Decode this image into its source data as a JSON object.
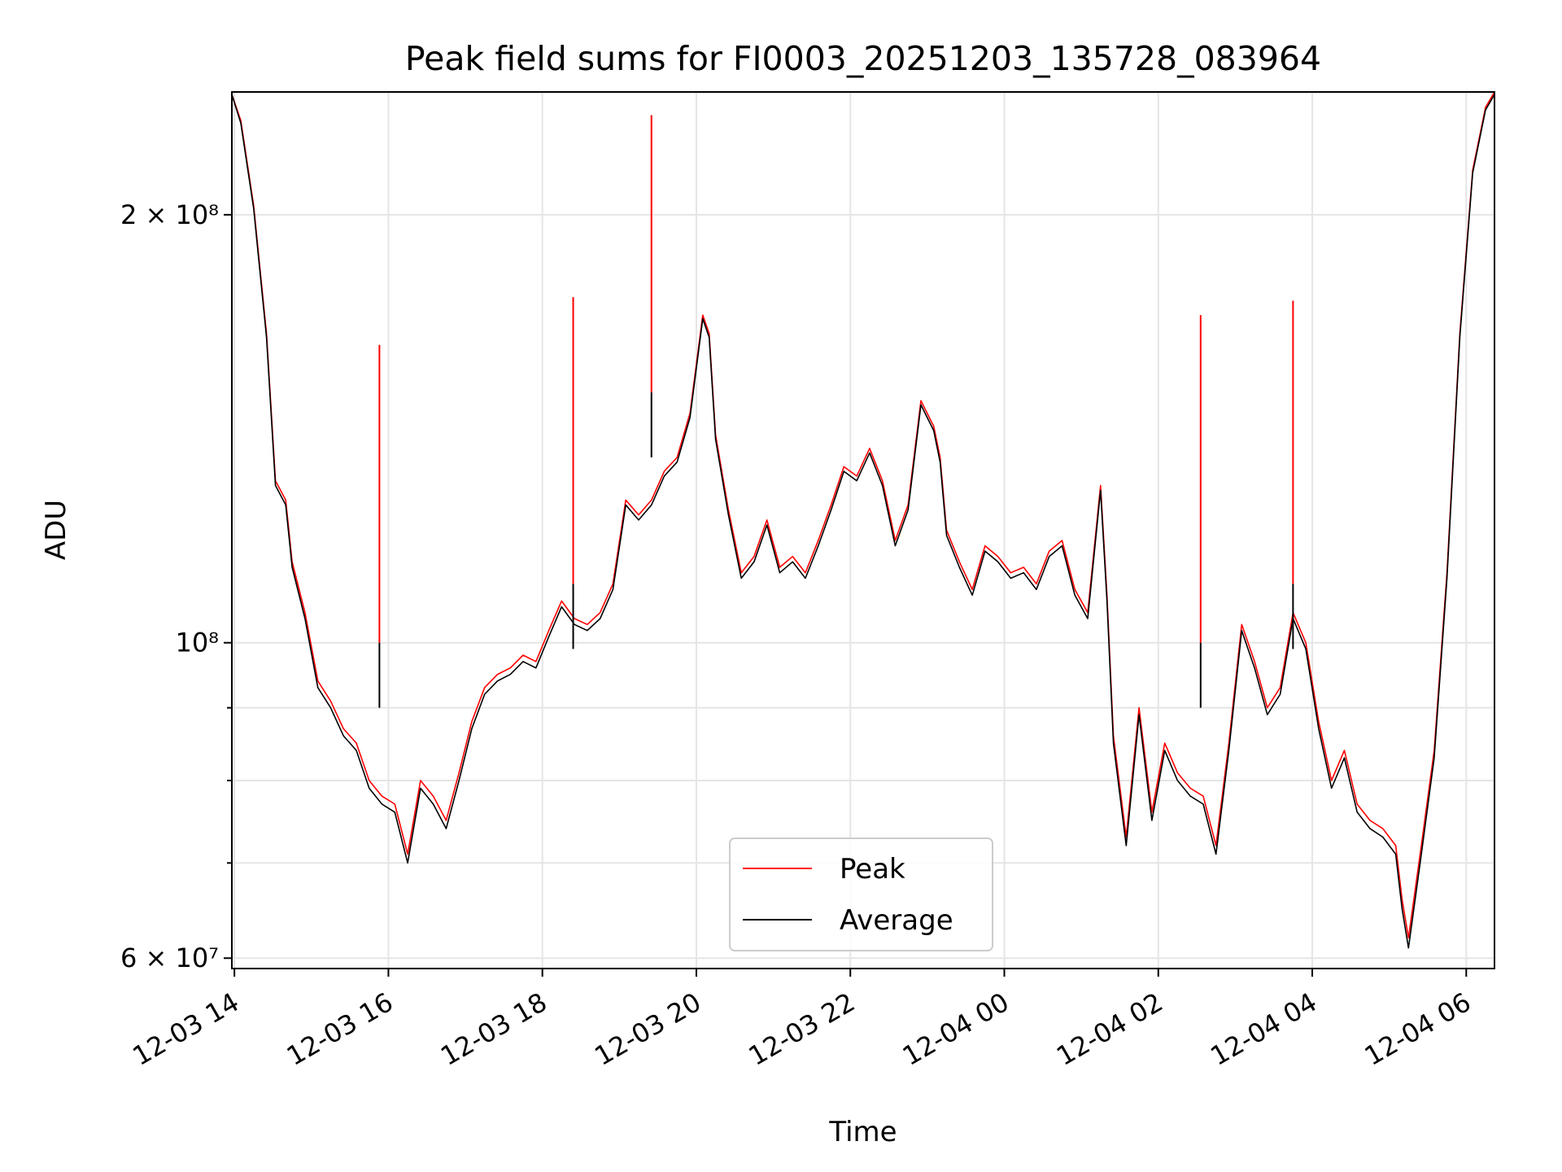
{
  "chart_data": {
    "type": "line",
    "title": "Peak field sums for FI0003_20251203_135728_083964",
    "xlabel": "Time",
    "ylabel": "ADU",
    "yscale": "log",
    "ylim": [
      59000000,
      244000000
    ],
    "xlim": [
      "12-03 13:58",
      "12-04 06:22"
    ],
    "grid": true,
    "legend_position": "lower-center",
    "x_ticks": [
      "12-03 14",
      "12-03 16",
      "12-03 18",
      "12-03 20",
      "12-03 22",
      "12-04 00",
      "12-04 02",
      "12-04 04",
      "12-04 06"
    ],
    "y_ticks": [
      {
        "label": "6 × 10⁷",
        "value": 60000000
      },
      {
        "label": "10⁸",
        "value": 100000000
      },
      {
        "label": "2 × 10⁸",
        "value": 200000000
      }
    ],
    "y_minor_ticks": [
      70000000,
      80000000,
      90000000
    ],
    "x": [
      "12-03 13:58",
      "12-03 14:05",
      "12-03 14:15",
      "12-03 14:25",
      "12-03 14:32",
      "12-03 14:40",
      "12-03 14:45",
      "12-03 14:55",
      "12-03 15:05",
      "12-03 15:15",
      "12-03 15:25",
      "12-03 15:35",
      "12-03 15:45",
      "12-03 15:55",
      "12-03 16:05",
      "12-03 16:15",
      "12-03 16:25",
      "12-03 16:35",
      "12-03 16:45",
      "12-03 16:55",
      "12-03 17:05",
      "12-03 17:15",
      "12-03 17:25",
      "12-03 17:35",
      "12-03 17:45",
      "12-03 17:55",
      "12-03 18:05",
      "12-03 18:15",
      "12-03 18:25",
      "12-03 18:35",
      "12-03 18:45",
      "12-03 18:55",
      "12-03 19:05",
      "12-03 19:15",
      "12-03 19:25",
      "12-03 19:35",
      "12-03 19:45",
      "12-03 19:55",
      "12-03 20:05",
      "12-03 20:10",
      "12-03 20:15",
      "12-03 20:25",
      "12-03 20:35",
      "12-03 20:45",
      "12-03 20:55",
      "12-03 21:05",
      "12-03 21:15",
      "12-03 21:25",
      "12-03 21:35",
      "12-03 21:45",
      "12-03 21:55",
      "12-03 22:05",
      "12-03 22:15",
      "12-03 22:25",
      "12-03 22:35",
      "12-03 22:45",
      "12-03 22:55",
      "12-03 23:05",
      "12-03 23:10",
      "12-03 23:15",
      "12-03 23:25",
      "12-03 23:35",
      "12-03 23:45",
      "12-03 23:55",
      "12-04 00:05",
      "12-04 00:15",
      "12-04 00:25",
      "12-04 00:35",
      "12-04 00:45",
      "12-04 00:55",
      "12-04 01:05",
      "12-04 01:15",
      "12-04 01:20",
      "12-04 01:25",
      "12-04 01:35",
      "12-04 01:45",
      "12-04 01:55",
      "12-04 02:05",
      "12-04 02:15",
      "12-04 02:25",
      "12-04 02:35",
      "12-04 02:45",
      "12-04 02:55",
      "12-04 03:05",
      "12-04 03:15",
      "12-04 03:25",
      "12-04 03:35",
      "12-04 03:45",
      "12-04 03:55",
      "12-04 04:05",
      "12-04 04:15",
      "12-04 04:25",
      "12-04 04:35",
      "12-04 04:45",
      "12-04 04:55",
      "12-04 05:05",
      "12-04 05:10",
      "12-04 05:15",
      "12-04 05:25",
      "12-04 05:35",
      "12-04 05:45",
      "12-04 05:55",
      "12-04 06:05",
      "12-04 06:15",
      "12-04 06:22"
    ],
    "series": [
      {
        "name": "Peak",
        "color": "#ff0000",
        "values": [
          243000000,
          233000000,
          203000000,
          165000000,
          130000000,
          126000000,
          114000000,
          105000000,
          94000000,
          91000000,
          87000000,
          85000000,
          80000000,
          78000000,
          77000000,
          71000000,
          80000000,
          78000000,
          75000000,
          81000000,
          88000000,
          93000000,
          95000000,
          96000000,
          98000000,
          97000000,
          102000000,
          107000000,
          104000000,
          103000000,
          105000000,
          110000000,
          126000000,
          123000000,
          126000000,
          132000000,
          135000000,
          145000000,
          170000000,
          165000000,
          140000000,
          124000000,
          112000000,
          115000000,
          122000000,
          113000000,
          115000000,
          112000000,
          118000000,
          125000000,
          133000000,
          131000000,
          137000000,
          130000000,
          118000000,
          125000000,
          148000000,
          142000000,
          135000000,
          120000000,
          114000000,
          109000000,
          117000000,
          115000000,
          112000000,
          113000000,
          110000000,
          116000000,
          118000000,
          109000000,
          105000000,
          129000000,
          108000000,
          86000000,
          73000000,
          90000000,
          76000000,
          85000000,
          81000000,
          79000000,
          78000000,
          72000000,
          85000000,
          103000000,
          97000000,
          90000000,
          93000000,
          105000000,
          100000000,
          88000000,
          80000000,
          84000000,
          77000000,
          75000000,
          74000000,
          72000000,
          66000000,
          62000000,
          72000000,
          84000000,
          112000000,
          165000000,
          215000000,
          238000000,
          244000000
        ]
      },
      {
        "name": "Average",
        "color": "#000000",
        "values": [
          243000000,
          232000000,
          202000000,
          164000000,
          129000000,
          125000000,
          113000000,
          104000000,
          93000000,
          90000000,
          86000000,
          84000000,
          79000000,
          77000000,
          76000000,
          70000000,
          79000000,
          77000000,
          74000000,
          80000000,
          87000000,
          92000000,
          94000000,
          95000000,
          97000000,
          96000000,
          101000000,
          106000000,
          103000000,
          102000000,
          104000000,
          109000000,
          125000000,
          122000000,
          125000000,
          131000000,
          134000000,
          144000000,
          169000000,
          164000000,
          139000000,
          123000000,
          111000000,
          114000000,
          121000000,
          112000000,
          114000000,
          111000000,
          117000000,
          124000000,
          132000000,
          130000000,
          136000000,
          129000000,
          117000000,
          124000000,
          147000000,
          141000000,
          134000000,
          119000000,
          113000000,
          108000000,
          116000000,
          114000000,
          111000000,
          112000000,
          109000000,
          115000000,
          117000000,
          108000000,
          104000000,
          128000000,
          107000000,
          85000000,
          72000000,
          89000000,
          75000000,
          84000000,
          80000000,
          78000000,
          77000000,
          71000000,
          84000000,
          102000000,
          96000000,
          89000000,
          92000000,
          104000000,
          99000000,
          87000000,
          79000000,
          83000000,
          76000000,
          74000000,
          73000000,
          71000000,
          65000000,
          61000000,
          71000000,
          83000000,
          111000000,
          164000000,
          214000000,
          237000000,
          243000000
        ]
      }
    ],
    "peak_spikes": [
      {
        "x": "12-03 15:53",
        "peak": 162000000,
        "average": 100000000
      },
      {
        "x": "12-03 18:24",
        "peak": 175000000,
        "average": 110000000
      },
      {
        "x": "12-03 19:25",
        "peak": 235000000,
        "average": 150000000
      },
      {
        "x": "12-04 02:33",
        "peak": 170000000,
        "average": 100000000
      },
      {
        "x": "12-04 03:45",
        "peak": 174000000,
        "average": 110000000
      }
    ],
    "legend": [
      {
        "label": "Peak",
        "color": "#ff0000"
      },
      {
        "label": "Average",
        "color": "#000000"
      }
    ]
  }
}
